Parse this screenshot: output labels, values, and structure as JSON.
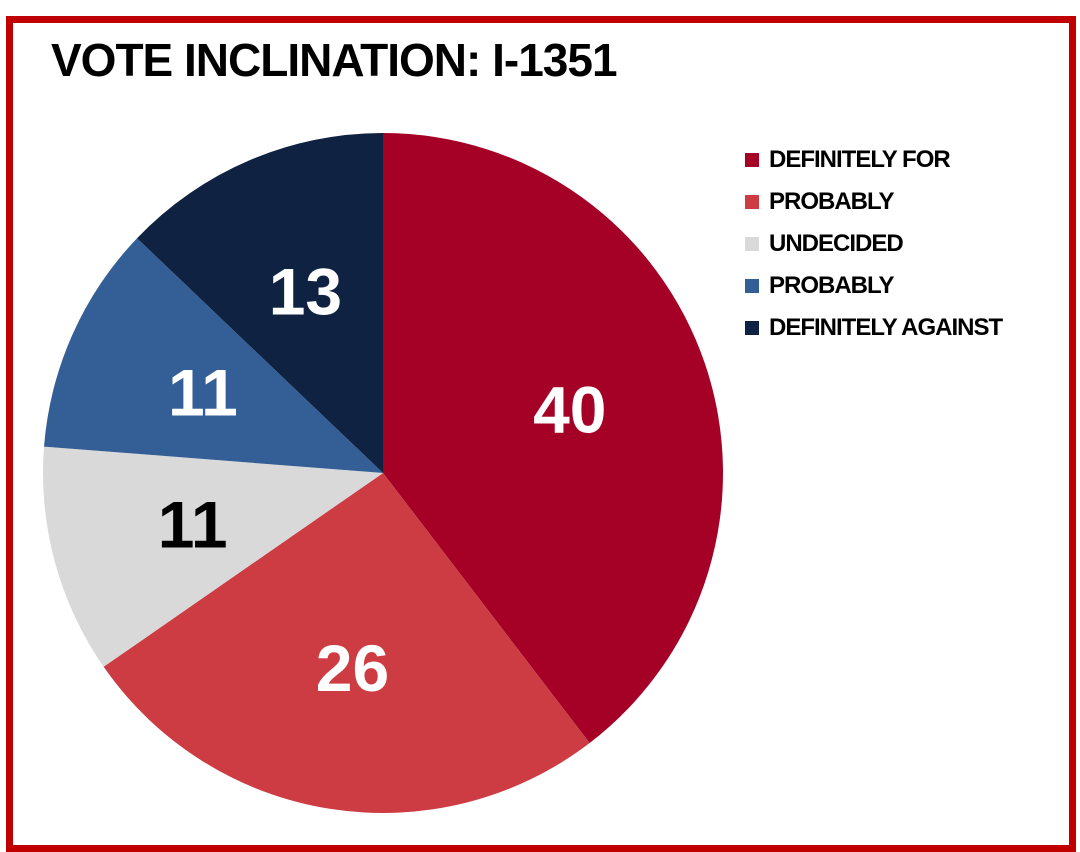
{
  "chart_data": {
    "type": "pie",
    "title": "VOTE INCLINATION: I-1351",
    "legend_position": "right",
    "slices": [
      {
        "label": "DEFINITELY FOR",
        "value": 40,
        "color": "#a50026",
        "label_color": "#ffffff"
      },
      {
        "label": "PROBABLY",
        "value": 26,
        "color": "#cc3c42",
        "label_color": "#ffffff"
      },
      {
        "label": "UNDECIDED",
        "value": 11,
        "color": "#d9d9d9",
        "label_color": "#000000"
      },
      {
        "label": "PROBABLY",
        "value": 11,
        "color": "#335e96",
        "label_color": "#ffffff"
      },
      {
        "label": "DEFINITELY AGAINST",
        "value": 13,
        "color": "#0f2242",
        "label_color": "#ffffff"
      }
    ]
  }
}
